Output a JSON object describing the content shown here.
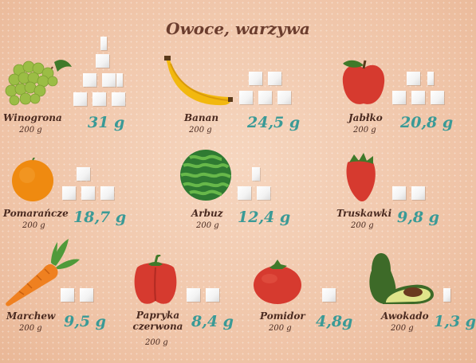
{
  "title": "Owoce, warzywa",
  "items": [
    {
      "name": "Winogrona",
      "weight": "200 g",
      "sugar": "31 g",
      "icon": "grapes-icon"
    },
    {
      "name": "Banan",
      "weight": "200 g",
      "sugar": "24,5 g",
      "icon": "banana-icon"
    },
    {
      "name": "Jabłko",
      "weight": "200 g",
      "sugar": "20,8 g",
      "icon": "apple-icon"
    },
    {
      "name": "Pomarańcze",
      "weight": "200 g",
      "sugar": "18,7 g",
      "icon": "orange-icon"
    },
    {
      "name": "Arbuz",
      "weight": "200 g",
      "sugar": "12,4 g",
      "icon": "watermelon-icon"
    },
    {
      "name": "Truskawki",
      "weight": "200 g",
      "sugar": "9,8 g",
      "icon": "strawberry-icon"
    },
    {
      "name": "Marchew",
      "weight": "200 g",
      "sugar": "9,5 g",
      "icon": "carrot-icon"
    },
    {
      "name": "Papryka czerwona",
      "weight": "200 g",
      "sugar": "8,4 g",
      "icon": "red-pepper-icon"
    },
    {
      "name": "Pomidor",
      "weight": "200 g",
      "sugar": "4,8g",
      "icon": "tomato-icon"
    },
    {
      "name": "Awokado",
      "weight": "200 g",
      "sugar": "1,3 g",
      "icon": "avocado-icon"
    }
  ]
}
